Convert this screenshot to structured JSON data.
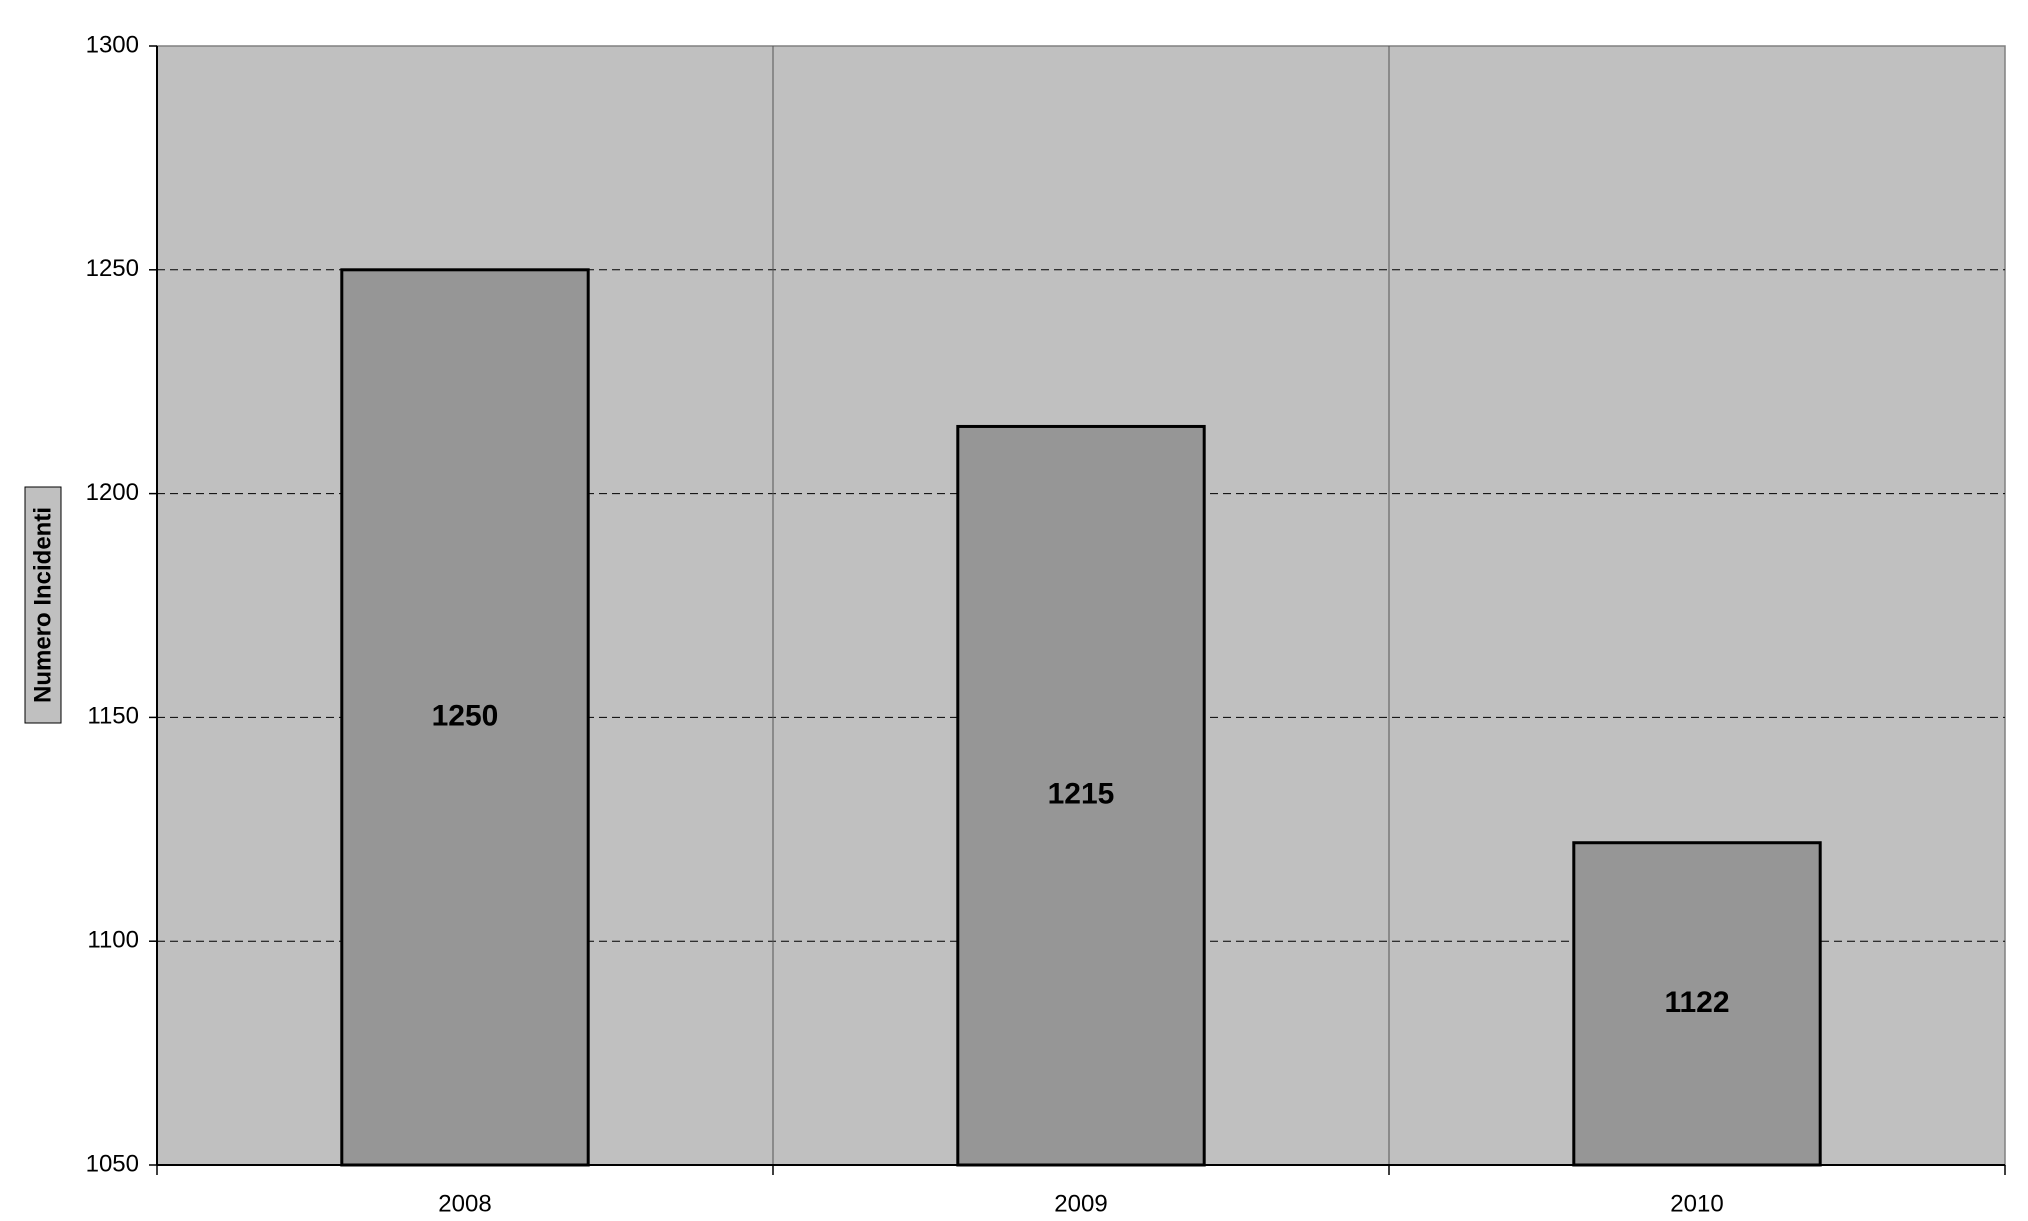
{
  "chart_data": {
    "type": "bar",
    "y_label": "Numero Incidenti",
    "categories": [
      "2008",
      "2009",
      "2010"
    ],
    "values": [
      1250,
      1215,
      1122
    ],
    "color": "#969696",
    "plot_background": "#c0c0c0",
    "ylim": [
      1050,
      1300
    ],
    "yticks": [
      1050,
      1100,
      1150,
      1200,
      1250,
      1300
    ],
    "grid": true
  }
}
